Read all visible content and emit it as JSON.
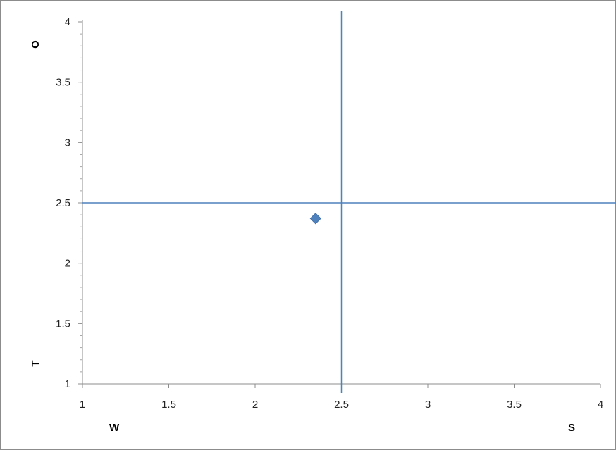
{
  "chart_data": {
    "type": "scatter",
    "title": "",
    "xlabel": "",
    "ylabel": "",
    "xlim": [
      1,
      4
    ],
    "ylim": [
      1,
      4
    ],
    "x_ticks": [
      1,
      1.5,
      2,
      2.5,
      3,
      3.5,
      4
    ],
    "y_ticks": [
      1,
      1.5,
      2,
      2.5,
      3,
      3.5,
      4
    ],
    "series": [
      {
        "points": [
          {
            "x": 2.35,
            "y": 2.37
          }
        ],
        "marker": "diamond",
        "color": "#4f81bd"
      }
    ],
    "reference_lines": {
      "x": 2.5,
      "y": 2.5,
      "color": "#4f81bd"
    },
    "quadrant_labels": {
      "bottom_left": "W",
      "bottom_right": "S",
      "left_top": "O",
      "left_bottom": "T"
    },
    "grid": false,
    "legend": "none"
  }
}
